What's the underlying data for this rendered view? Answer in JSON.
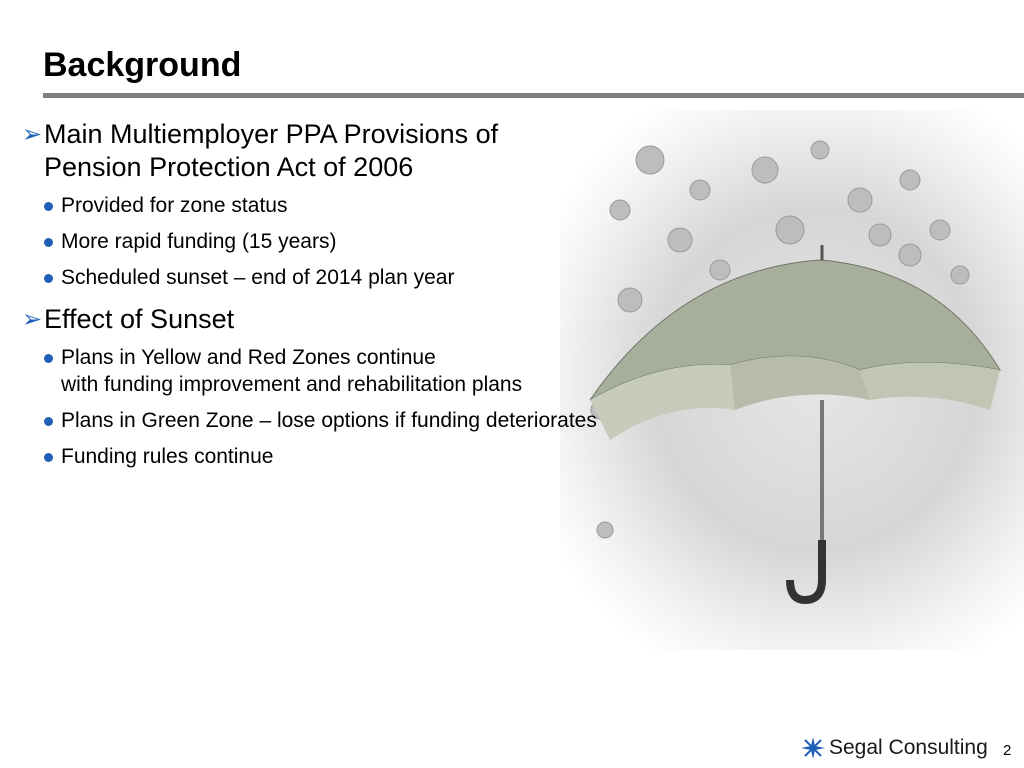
{
  "slide": {
    "title": "Background",
    "sections": [
      {
        "heading_line1": "Main Multiemployer PPA Provisions of",
        "heading_line2": "Pension Protection Act of 2006",
        "bullets": [
          {
            "line1": "Provided for zone status"
          },
          {
            "line1": "More rapid funding (15 years)"
          },
          {
            "line1": "Scheduled sunset – end of 2014 plan year"
          }
        ]
      },
      {
        "heading_line1": "Effect of Sunset",
        "bullets": [
          {
            "line1": "Plans in Yellow and Red Zones continue",
            "line2": "with funding improvement and rehabilitation plans"
          },
          {
            "line1": "Plans in Green Zone – lose options if funding deteriorates"
          },
          {
            "line1": "Funding rules continue"
          }
        ]
      }
    ],
    "footer": {
      "logo_text": "Segal Consulting",
      "page_number": "2"
    },
    "icons": {
      "bullet_l1": "arrow-bullet-icon",
      "bullet_l2": "dot-bullet-icon",
      "logo": "star-logo-icon"
    },
    "colors": {
      "accent": "#1f5fb5",
      "rule": "#808080"
    }
  }
}
